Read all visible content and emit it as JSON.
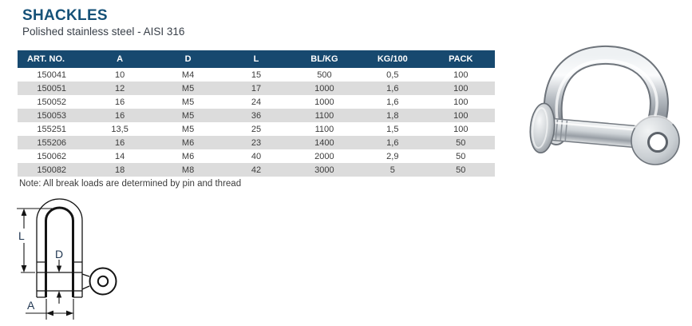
{
  "page": {
    "title": "SHACKLES",
    "subtitle": "Polished stainless steel - AISI 316",
    "note": "Note: All break loads are determined by pin and thread"
  },
  "table": {
    "columns": [
      "ART. NO.",
      "A",
      "D",
      "L",
      "BL/KG",
      "KG/100",
      "PACK"
    ],
    "rows": [
      [
        "150041",
        "10",
        "M4",
        "15",
        "500",
        "0,5",
        "100"
      ],
      [
        "150051",
        "12",
        "M5",
        "17",
        "1000",
        "1,6",
        "100"
      ],
      [
        "150052",
        "16",
        "M5",
        "24",
        "1000",
        "1,6",
        "100"
      ],
      [
        "150053",
        "16",
        "M5",
        "36",
        "1100",
        "1,8",
        "100"
      ],
      [
        "155251",
        "13,5",
        "M5",
        "25",
        "1100",
        "1,5",
        "100"
      ],
      [
        "155206",
        "16",
        "M6",
        "23",
        "1400",
        "1,6",
        "50"
      ],
      [
        "150062",
        "14",
        "M6",
        "40",
        "2000",
        "2,9",
        "50"
      ],
      [
        "150082",
        "18",
        "M8",
        "42",
        "3000",
        "5",
        "50"
      ]
    ]
  },
  "diagram": {
    "length_label": "L",
    "pin_diameter_label": "D",
    "inner_width_label": "A"
  },
  "colors": {
    "header_bg": "#17496f",
    "alt_row_bg": "#dcdcdc",
    "title_blue": "#155178",
    "body_text": "#3c3c3c"
  }
}
